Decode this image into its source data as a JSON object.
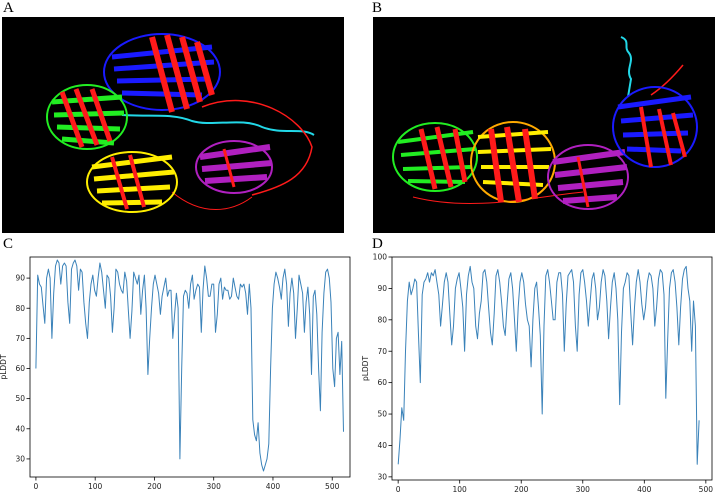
{
  "panels": {
    "A": "A",
    "B": "B",
    "C": "C",
    "D": "D"
  },
  "colors": {
    "line": "#3a82b9",
    "axis": "#000000",
    "protein_background": "#000000",
    "domain_red": "#ff1a1a",
    "domain_blue": "#1a1aff",
    "domain_green": "#22ee22",
    "domain_yellow": "#ffee00",
    "domain_magenta": "#b020c0",
    "linker_cyan": "#22d8e8"
  },
  "structures": [
    {
      "name": "structure-a",
      "description_icon": "protein-cartoon-icon"
    },
    {
      "name": "structure-b",
      "description_icon": "protein-cartoon-icon"
    }
  ],
  "chart_data": [
    {
      "type": "line",
      "ylabel": "pLDDT",
      "xlim": [
        -10,
        530
      ],
      "ylim": [
        24,
        97
      ],
      "xticks": [
        0,
        100,
        200,
        300,
        400,
        500
      ],
      "yticks": [
        30,
        40,
        50,
        60,
        70,
        80,
        90
      ],
      "grid": false,
      "series": [
        {
          "x": [
            0,
            3,
            6,
            9,
            12,
            15,
            18,
            21,
            24,
            27,
            30,
            33,
            36,
            39,
            42,
            45,
            48,
            51,
            54,
            57,
            60,
            63,
            66,
            69,
            72,
            75,
            78,
            81,
            84,
            87,
            90,
            93,
            96,
            99,
            102,
            105,
            108,
            111,
            114,
            117,
            120,
            123,
            126,
            129,
            132,
            135,
            138,
            141,
            144,
            147,
            150,
            153,
            156,
            159,
            162,
            165,
            168,
            171,
            174,
            177,
            180,
            183,
            186,
            189,
            192,
            195,
            198,
            201,
            204,
            207,
            210,
            213,
            216,
            219,
            222,
            225,
            228,
            231,
            234,
            237,
            240,
            243,
            246,
            249,
            252,
            255,
            258,
            261,
            264,
            267,
            270,
            273,
            276,
            279,
            282,
            285,
            288,
            291,
            294,
            297,
            300,
            303,
            306,
            309,
            312,
            315,
            318,
            321,
            324,
            327,
            330,
            333,
            336,
            339,
            342,
            345,
            348,
            351,
            354,
            357,
            360,
            363,
            366,
            369,
            372,
            375,
            378,
            381,
            384,
            387,
            390,
            393,
            396,
            399,
            402,
            405,
            408,
            411,
            414,
            417,
            420,
            423,
            426,
            429,
            432,
            435,
            438,
            441,
            444,
            447,
            450,
            453,
            456,
            459,
            462,
            465,
            468,
            471,
            474,
            477,
            480,
            483,
            486,
            489,
            492,
            495,
            498,
            501,
            504,
            507,
            510,
            513,
            516,
            519
          ],
          "y": [
            60,
            91,
            88,
            87,
            81,
            75,
            90,
            93,
            90,
            70,
            85,
            94,
            96,
            95,
            88,
            94,
            95,
            94,
            82,
            75,
            93,
            95,
            96,
            94,
            86,
            93,
            92,
            82,
            75,
            70,
            82,
            88,
            91,
            86,
            84,
            90,
            95,
            92,
            86,
            80,
            91,
            90,
            84,
            72,
            80,
            93,
            92,
            88,
            86,
            85,
            92,
            89,
            79,
            70,
            79,
            92,
            90,
            88,
            91,
            78,
            86,
            91,
            80,
            58,
            70,
            80,
            88,
            91,
            88,
            85,
            78,
            84,
            87,
            90,
            84,
            86,
            86,
            70,
            78,
            85,
            80,
            30,
            60,
            84,
            86,
            85,
            80,
            88,
            91,
            83,
            86,
            88,
            87,
            72,
            86,
            94,
            90,
            84,
            84,
            88,
            88,
            72,
            78,
            88,
            90,
            83,
            87,
            86,
            86,
            83,
            84,
            90,
            87,
            84,
            83,
            88,
            87,
            88,
            85,
            78,
            88,
            80,
            43,
            38,
            36,
            42,
            32,
            28,
            26,
            28,
            30,
            35,
            60,
            80,
            88,
            92,
            90,
            87,
            83,
            90,
            93,
            88,
            74,
            85,
            90,
            85,
            70,
            80,
            91,
            88,
            85,
            72,
            82,
            87,
            78,
            58,
            84,
            86,
            78,
            60,
            46,
            72,
            85,
            92,
            93,
            90,
            82,
            60,
            54,
            70,
            72,
            58,
            69,
            39
          ]
        }
      ]
    },
    {
      "type": "line",
      "ylabel": "pLDDT",
      "xlim": [
        -10,
        510
      ],
      "ylim": [
        29,
        100
      ],
      "xticks": [
        0,
        100,
        200,
        300,
        400,
        500
      ],
      "yticks": [
        30,
        40,
        50,
        60,
        70,
        80,
        90,
        100
      ],
      "grid": false,
      "series": [
        {
          "x": [
            0,
            3,
            6,
            9,
            12,
            15,
            18,
            21,
            24,
            27,
            30,
            33,
            36,
            39,
            42,
            45,
            48,
            51,
            54,
            57,
            60,
            63,
            66,
            69,
            72,
            75,
            78,
            81,
            84,
            87,
            90,
            93,
            96,
            99,
            102,
            105,
            108,
            111,
            114,
            117,
            120,
            123,
            126,
            129,
            132,
            135,
            138,
            141,
            144,
            147,
            150,
            153,
            156,
            159,
            162,
            165,
            168,
            171,
            174,
            177,
            180,
            183,
            186,
            189,
            192,
            195,
            198,
            201,
            204,
            207,
            210,
            213,
            216,
            219,
            222,
            225,
            228,
            231,
            234,
            237,
            240,
            243,
            246,
            249,
            252,
            255,
            258,
            261,
            264,
            267,
            270,
            273,
            276,
            279,
            282,
            285,
            288,
            291,
            294,
            297,
            300,
            303,
            306,
            309,
            312,
            315,
            318,
            321,
            324,
            327,
            330,
            333,
            336,
            339,
            342,
            345,
            348,
            351,
            354,
            357,
            360,
            363,
            366,
            369,
            372,
            375,
            378,
            381,
            384,
            387,
            390,
            393,
            396,
            399,
            402,
            405,
            408,
            411,
            414,
            417,
            420,
            423,
            426,
            429,
            432,
            435,
            438,
            441,
            444,
            447,
            450,
            453,
            456,
            459,
            462,
            465,
            468,
            471,
            474,
            477,
            480,
            483,
            486,
            489
          ],
          "y": [
            34,
            42,
            52,
            48,
            70,
            86,
            92,
            88,
            90,
            93,
            92,
            75,
            60,
            88,
            92,
            93,
            95,
            92,
            95,
            94,
            96,
            92,
            88,
            78,
            85,
            92,
            95,
            92,
            82,
            72,
            78,
            90,
            93,
            95,
            90,
            84,
            70,
            88,
            94,
            97,
            92,
            90,
            78,
            74,
            82,
            86,
            95,
            96,
            92,
            84,
            76,
            72,
            82,
            94,
            96,
            92,
            86,
            78,
            75,
            85,
            93,
            95,
            90,
            80,
            70,
            84,
            92,
            95,
            92,
            85,
            80,
            78,
            65,
            80,
            90,
            92,
            84,
            75,
            50,
            78,
            94,
            96,
            92,
            86,
            80,
            80,
            92,
            95,
            95,
            88,
            70,
            85,
            94,
            95,
            96,
            92,
            78,
            70,
            88,
            95,
            96,
            92,
            86,
            78,
            86,
            93,
            95,
            90,
            80,
            84,
            92,
            96,
            94,
            86,
            74,
            84,
            92,
            95,
            90,
            80,
            53,
            76,
            90,
            92,
            95,
            94,
            82,
            72,
            84,
            92,
            96,
            92,
            85,
            80,
            84,
            92,
            95,
            94,
            90,
            78,
            84,
            93,
            96,
            95,
            88,
            55,
            74,
            90,
            95,
            96,
            92,
            84,
            72,
            84,
            93,
            96,
            97,
            90,
            86,
            70,
            86,
            78,
            34,
            48
          ]
        }
      ]
    }
  ]
}
